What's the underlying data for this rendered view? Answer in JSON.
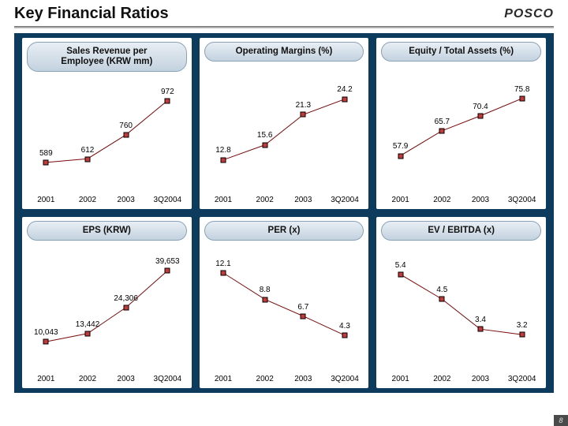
{
  "page": {
    "title": "Key Financial Ratios",
    "logo_text": "POSCO",
    "footer_num": "8",
    "background_color": "#0d3b5e",
    "panel_title_bg_top": "#e8eef4",
    "panel_title_bg_bottom": "#c3d2df",
    "panel_title_border": "#8aa2b8",
    "line_color": "#7a0b0b",
    "marker_fill": "#c23a3a",
    "marker_border": "#000000",
    "axis_label_fontsize": 10,
    "title_fontsize": 20
  },
  "x_categories": [
    "2001",
    "2002",
    "2003",
    "3Q2004"
  ],
  "x_positions_pct": [
    12,
    38,
    62,
    88
  ],
  "charts": [
    {
      "title": "Sales Revenue per\nEmployee (KRW mm)",
      "type": "line",
      "values": [
        589,
        612,
        760,
        972
      ],
      "value_labels": [
        "589",
        "612",
        "760",
        "972"
      ],
      "y_min": 500,
      "y_max": 1050,
      "label_offsets": [
        "above",
        "above",
        "above",
        "above"
      ]
    },
    {
      "title": "Operating Margins (%)",
      "type": "line",
      "values": [
        12.8,
        15.6,
        21.3,
        24.2
      ],
      "value_labels": [
        "12.8",
        "15.6",
        "21.3",
        "24.2"
      ],
      "y_min": 10,
      "y_max": 28,
      "label_offsets": [
        "above",
        "above",
        "above",
        "above"
      ]
    },
    {
      "title": "Equity / Total Assets (%)",
      "type": "line",
      "values": [
        57.9,
        65.7,
        70.4,
        75.8
      ],
      "value_labels": [
        "57.9",
        "65.7",
        "70.4",
        "75.8"
      ],
      "y_min": 52,
      "y_max": 82,
      "label_offsets": [
        "above",
        "above",
        "above",
        "above"
      ]
    },
    {
      "title": "EPS (KRW)",
      "type": "line",
      "values": [
        10043,
        13442,
        24306,
        39653
      ],
      "value_labels": [
        "10,043",
        "13,442",
        "24,306",
        "39,653"
      ],
      "y_min": 5000,
      "y_max": 45000,
      "label_offsets": [
        "above",
        "above",
        "above",
        "above"
      ]
    },
    {
      "title": "PER (x)",
      "type": "line",
      "values": [
        12.1,
        8.8,
        6.7,
        4.3
      ],
      "value_labels": [
        "12.1",
        "8.8",
        "6.7",
        "4.3"
      ],
      "y_min": 2,
      "y_max": 14,
      "label_offsets": [
        "above",
        "above",
        "above",
        "above"
      ]
    },
    {
      "title": "EV / EBITDA (x)",
      "type": "line",
      "values": [
        5.4,
        4.5,
        3.4,
        3.2
      ],
      "value_labels": [
        "5.4",
        "4.5",
        "3.4",
        "3.2"
      ],
      "y_min": 2.5,
      "y_max": 6,
      "label_offsets": [
        "above",
        "above",
        "above",
        "above"
      ]
    }
  ]
}
